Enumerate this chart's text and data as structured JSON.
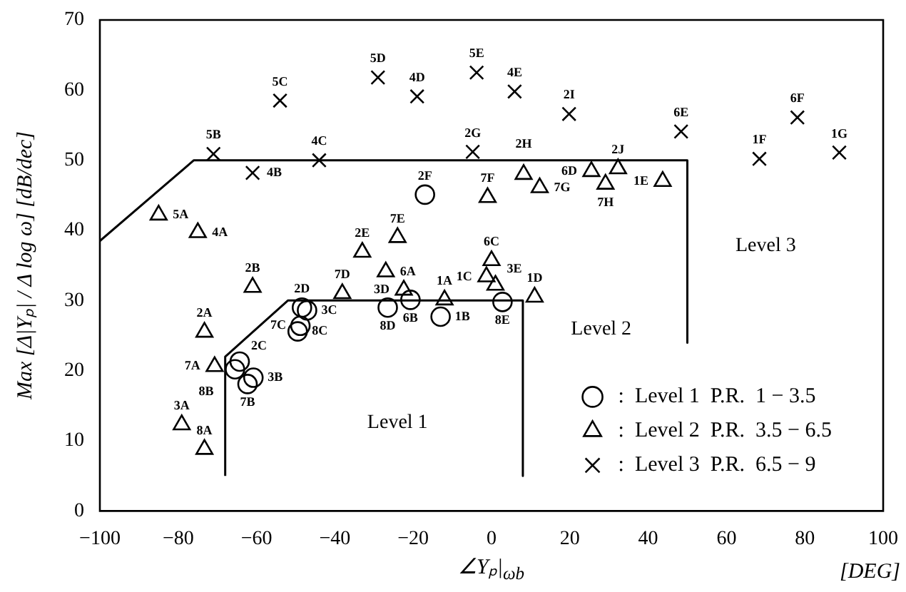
{
  "chart_data": {
    "type": "scatter",
    "xlabel": "∠Yₚ|$_{ωb}$",
    "ylabel": "Max [Δ|Yₚ| / Δ log ω]        [dB/dec]",
    "xlim": [
      -100,
      100
    ],
    "xticks": [
      -100,
      -80,
      -60,
      -40,
      -20,
      0,
      20,
      40,
      60,
      80,
      100
    ],
    "ylim": [
      0,
      70
    ],
    "yticks": [
      0,
      10,
      20,
      30,
      40,
      50,
      60,
      70
    ],
    "grid": false,
    "legend": "bottom right",
    "series": [
      {
        "name": ":  Level 1  P.R.  1 − 3.5",
        "type": "scatter",
        "marker": "circle",
        "color": "#000000",
        "x": [
          -17,
          -64.3,
          -65.5,
          -60.8,
          -62.3,
          -48.4,
          -47.1,
          -48.8,
          -49.5,
          -26.5,
          -20.7,
          -13,
          2.8
        ],
        "values": [
          45.1,
          21.3,
          20.2,
          19.0,
          18.1,
          29.0,
          28.6,
          26.4,
          25.6,
          29.0,
          30.1,
          27.7,
          29.8
        ]
      },
      {
        "name": ":  Level 2  P.R.  3.5 − 6.5",
        "type": "scatter",
        "marker": "triangle",
        "color": "#000000",
        "x": [
          -85,
          -75,
          -33,
          -24,
          -27,
          -61,
          -1,
          8.2,
          12.3,
          25.5,
          29.1,
          32.3,
          43.7,
          0,
          -1.3,
          1,
          11,
          -73.3,
          -70.7,
          -79.1,
          -73.3,
          -38.1,
          -22.4,
          -12
        ],
        "values": [
          42.2,
          39.7,
          36.9,
          39.0,
          34.1,
          31.9,
          44.7,
          48.0,
          46.1,
          48.4,
          46.6,
          48.8,
          47.0,
          35.7,
          33.4,
          32.2,
          30.5,
          25.5,
          20.6,
          12.3,
          8.8,
          31.0,
          31.5,
          30.1
        ]
      },
      {
        "name": ":  Level 3  P.R.  6.5 − 9",
        "type": "scatter",
        "marker": "cross",
        "color": "#000000",
        "x": [
          -54,
          -29,
          -19,
          -71,
          -61,
          -44,
          -3.8,
          5.9,
          19.8,
          48.4,
          68.4,
          78.1,
          88.8,
          -4.8
        ],
        "values": [
          58.5,
          61.8,
          59.1,
          50.9,
          48.2,
          50.0,
          62.5,
          59.8,
          56.6,
          54.1,
          50.2,
          56.1,
          51.1,
          51.2
        ]
      },
      {
        "type": "line",
        "marker": "none",
        "color": "#000000",
        "x": [
          -100,
          -76,
          50,
          50
        ],
        "values": [
          38.5,
          50,
          50,
          24
        ]
      },
      {
        "type": "line",
        "marker": "none",
        "color": "#000000",
        "x": [
          -68,
          -68,
          -52,
          8,
          8
        ],
        "values": [
          5,
          22,
          30,
          30,
          5
        ]
      }
    ],
    "annotations": [
      "[DEG]",
      "Level 1",
      "Level 2",
      "Level 3",
      {
        "text": "2F",
        "x": -17,
        "y": 45.1
      },
      {
        "text": "2C",
        "x": -64.3,
        "y": 21.3
      },
      {
        "text": "8B",
        "x": -65.5,
        "y": 20.2
      },
      {
        "text": "3B",
        "x": -60.8,
        "y": 19.0
      },
      {
        "text": "7B",
        "x": -62.3,
        "y": 18.1
      },
      {
        "text": "2D",
        "x": -48.4,
        "y": 29.0
      },
      {
        "text": "3C",
        "x": -47.1,
        "y": 28.6
      },
      {
        "text": "7C",
        "x": -48.8,
        "y": 26.4
      },
      {
        "text": "8C",
        "x": -49.5,
        "y": 25.6
      },
      {
        "text": "8D",
        "x": -26.5,
        "y": 29.0
      },
      {
        "text": "6B",
        "x": -20.7,
        "y": 30.1
      },
      {
        "text": "1B",
        "x": -13,
        "y": 27.7
      },
      {
        "text": "8E",
        "x": 2.8,
        "y": 29.8
      },
      {
        "text": "5A",
        "x": -85,
        "y": 42.2
      },
      {
        "text": "4A",
        "x": -75,
        "y": 39.7
      },
      {
        "text": "2E",
        "x": -33,
        "y": 36.9
      },
      {
        "text": "7E",
        "x": -24,
        "y": 39.0
      },
      {
        "text": "6A",
        "x": -27,
        "y": 34.1
      },
      {
        "text": "2B",
        "x": -61,
        "y": 31.9
      },
      {
        "text": "7F",
        "x": -1,
        "y": 44.7
      },
      {
        "text": "2H",
        "x": 8.2,
        "y": 48.0
      },
      {
        "text": "7G",
        "x": 12.3,
        "y": 46.1
      },
      {
        "text": "6D",
        "x": 25.5,
        "y": 48.4
      },
      {
        "text": "7H",
        "x": 29.1,
        "y": 46.6
      },
      {
        "text": "2J",
        "x": 32.3,
        "y": 48.8
      },
      {
        "text": "1E",
        "x": 43.7,
        "y": 47.0
      },
      {
        "text": "6C",
        "x": 0,
        "y": 35.7
      },
      {
        "text": "1C",
        "x": -1.3,
        "y": 33.4
      },
      {
        "text": "3E",
        "x": 1,
        "y": 32.2
      },
      {
        "text": "1D",
        "x": 11,
        "y": 30.5
      },
      {
        "text": "2A",
        "x": -73.3,
        "y": 25.5
      },
      {
        "text": "7A",
        "x": -70.7,
        "y": 20.6
      },
      {
        "text": "3A",
        "x": -79.1,
        "y": 12.3
      },
      {
        "text": "8A",
        "x": -73.3,
        "y": 8.8
      },
      {
        "text": "7D",
        "x": -38.1,
        "y": 31.0
      },
      {
        "text": "3D",
        "x": -22.4,
        "y": 31.5
      },
      {
        "text": "1A",
        "x": -12,
        "y": 30.1
      },
      {
        "text": "5C",
        "x": -54,
        "y": 58.5
      },
      {
        "text": "5D",
        "x": -29,
        "y": 61.8
      },
      {
        "text": "4D",
        "x": -19,
        "y": 59.1
      },
      {
        "text": "5B",
        "x": -71,
        "y": 50.9
      },
      {
        "text": "4B",
        "x": -61,
        "y": 48.2
      },
      {
        "text": "4C",
        "x": -44,
        "y": 50.0
      },
      {
        "text": "5E",
        "x": -3.8,
        "y": 62.5
      },
      {
        "text": "4E",
        "x": 5.9,
        "y": 59.8
      },
      {
        "text": "2I",
        "x": 19.8,
        "y": 56.6
      },
      {
        "text": "6E",
        "x": 48.4,
        "y": 54.1
      },
      {
        "text": "1F",
        "x": 68.4,
        "y": 50.2
      },
      {
        "text": "6F",
        "x": 78.1,
        "y": 56.1
      },
      {
        "text": "1G",
        "x": 88.8,
        "y": 51.1
      },
      {
        "text": "2G",
        "x": -4.8,
        "y": 51.2
      }
    ]
  }
}
